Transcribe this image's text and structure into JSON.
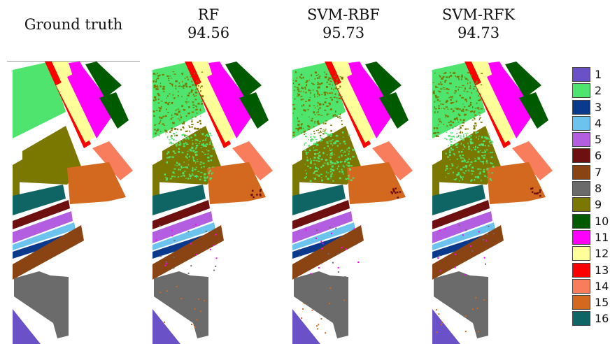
{
  "panels": [
    {
      "id": "gt",
      "title": "Ground truth",
      "score": ""
    },
    {
      "id": "rf",
      "title": "RF",
      "score": "94.56"
    },
    {
      "id": "svmrbf",
      "title": "SVM-RBF",
      "score": "95.73"
    },
    {
      "id": "svmrfk",
      "title": "SVM-RFK",
      "score": "94.73"
    }
  ],
  "legend": [
    {
      "label": "1",
      "color": "#6a51c8"
    },
    {
      "label": "2",
      "color": "#4ee46e"
    },
    {
      "label": "3",
      "color": "#0b3a8c"
    },
    {
      "label": "4",
      "color": "#6cc4ee"
    },
    {
      "label": "5",
      "color": "#b35ee0"
    },
    {
      "label": "6",
      "color": "#6e1010"
    },
    {
      "label": "7",
      "color": "#8a4312"
    },
    {
      "label": "8",
      "color": "#6b6b6b"
    },
    {
      "label": "9",
      "color": "#7a7800"
    },
    {
      "label": "10",
      "color": "#005a00"
    },
    {
      "label": "11",
      "color": "#ff00ff"
    },
    {
      "label": "12",
      "color": "#ffff99"
    },
    {
      "label": "13",
      "color": "#ff0000"
    },
    {
      "label": "14",
      "color": "#f77d5c"
    },
    {
      "label": "15",
      "color": "#d2691e"
    },
    {
      "label": "16",
      "color": "#0f6464"
    }
  ]
}
